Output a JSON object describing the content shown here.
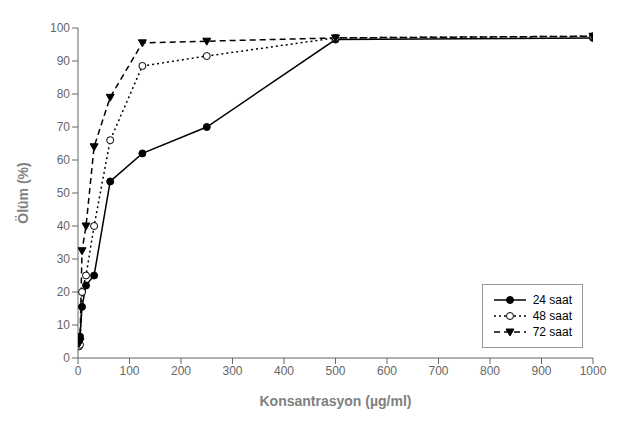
{
  "chart_data": {
    "type": "line",
    "x_label": "Konsantrasyon (µg/ml)",
    "y_label": "Ölüm (%)",
    "x": [
      1.95,
      3.9,
      7.8,
      15.6,
      31.25,
      62.5,
      125,
      250,
      500,
      1000
    ],
    "series": [
      {
        "name": "24 saat",
        "color": "#000000",
        "values": [
          5.5,
          6.5,
          15.5,
          22.0,
          25.0,
          53.5,
          62.0,
          70.0,
          96.5,
          97.0
        ],
        "line_style": "solid",
        "marker": "circle"
      },
      {
        "name": "48 saat",
        "color": "#000000",
        "values": [
          3.5,
          4.0,
          20.0,
          25.0,
          40.0,
          66.0,
          88.5,
          91.5,
          97.0,
          97.5
        ],
        "line_style": "dotted",
        "marker": "circle-open"
      },
      {
        "name": "72 saat",
        "color": "#000000",
        "values": [
          4.5,
          5.0,
          32.5,
          40.0,
          64.0,
          79.0,
          95.5,
          96.0,
          97.0,
          97.5
        ],
        "line_style": "dashed",
        "marker": "triangle-down"
      }
    ],
    "xlim": [
      0,
      1000
    ],
    "ylim": [
      0,
      100
    ],
    "xticks": [
      0,
      100,
      200,
      300,
      400,
      500,
      600,
      700,
      800,
      900,
      1000
    ],
    "yticks": [
      0,
      10,
      20,
      30,
      40,
      50,
      60,
      70,
      80,
      90,
      100
    ],
    "grid": false,
    "legend": "lower right"
  }
}
